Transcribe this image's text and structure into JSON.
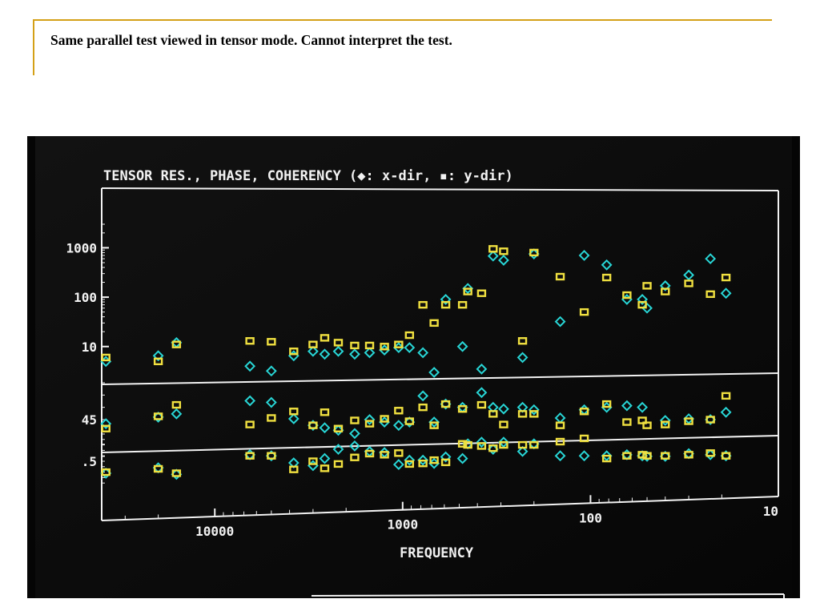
{
  "slide": {
    "caption": "Same parallel test viewed in tensor mode.  Cannot interpret the test."
  },
  "colors": {
    "x_dir": "#28d6d6",
    "y_dir": "#f0e040",
    "frame": "#f2f2f2",
    "background": "#0b0b0b",
    "caption_rule": "#d4a017"
  },
  "chart_data": {
    "type": "scatter",
    "title": "TENSOR RES., PHASE, COHERENCY (◆: x-dir, ▪: y-dir)",
    "xlabel": "FREQUENCY",
    "x_scale": "log",
    "x_reversed": true,
    "x_range": [
      40000,
      10
    ],
    "x_tick_labels": [
      {
        "value": 10000,
        "label": "10000"
      },
      {
        "value": 1000,
        "label": "1000"
      },
      {
        "value": 100,
        "label": "100"
      },
      {
        "value": 10,
        "label": "10"
      }
    ],
    "panels": [
      {
        "name": "resistivity",
        "scale": "log",
        "range": [
          3,
          3000
        ],
        "tick_labels": [
          {
            "value": 1000,
            "label": "1000"
          },
          {
            "value": 100,
            "label": "100"
          },
          {
            "value": 10,
            "label": "10"
          }
        ],
        "series": [
          {
            "marker": "diamond",
            "points": [
              [
                38000,
                5
              ],
              [
                20000,
                6.5
              ],
              [
                16000,
                12
              ],
              [
                6500,
                4
              ],
              [
                5000,
                3.2
              ],
              [
                3800,
                6.5
              ],
              [
                3000,
                8
              ],
              [
                2600,
                7
              ],
              [
                2200,
                8
              ],
              [
                1800,
                7
              ],
              [
                1500,
                7.5
              ],
              [
                1250,
                8.5
              ],
              [
                1050,
                9.5
              ],
              [
                920,
                9.5
              ],
              [
                780,
                7.5
              ],
              [
                680,
                3
              ],
              [
                590,
                90
              ],
              [
                480,
                10
              ],
              [
                450,
                150
              ],
              [
                380,
                3.5
              ],
              [
                330,
                680
              ],
              [
                290,
                560
              ],
              [
                230,
                6
              ],
              [
                200,
                750
              ],
              [
                145,
                32
              ],
              [
                108,
                700
              ],
              [
                82,
                450
              ],
              [
                64,
                90
              ],
              [
                53,
                90
              ],
              [
                50,
                60
              ],
              [
                40,
                170
              ],
              [
                30,
                280
              ],
              [
                23,
                600
              ],
              [
                19,
                120
              ]
            ]
          },
          {
            "marker": "square",
            "points": [
              [
                38000,
                6
              ],
              [
                20000,
                5
              ],
              [
                16000,
                11
              ],
              [
                6500,
                13
              ],
              [
                5000,
                12.5
              ],
              [
                3800,
                8
              ],
              [
                3000,
                11
              ],
              [
                2600,
                15
              ],
              [
                2200,
                12
              ],
              [
                1800,
                10.5
              ],
              [
                1500,
                10.5
              ],
              [
                1250,
                10
              ],
              [
                1050,
                11
              ],
              [
                920,
                17
              ],
              [
                780,
                70
              ],
              [
                680,
                30
              ],
              [
                590,
                70
              ],
              [
                480,
                70
              ],
              [
                450,
                130
              ],
              [
                380,
                120
              ],
              [
                330,
                950
              ],
              [
                290,
                850
              ],
              [
                230,
                13
              ],
              [
                200,
                800
              ],
              [
                145,
                260
              ],
              [
                108,
                50
              ],
              [
                82,
                250
              ],
              [
                64,
                110
              ],
              [
                53,
                70
              ],
              [
                50,
                170
              ],
              [
                40,
                130
              ],
              [
                30,
                190
              ],
              [
                23,
                115
              ],
              [
                19,
                250
              ]
            ]
          }
        ]
      },
      {
        "name": "phase",
        "tick_labels": [
          {
            "value": 45,
            "label": "45"
          }
        ],
        "series": [
          {
            "marker": "diamond",
            "points": [
              [
                38000,
                40
              ],
              [
                20000,
                48
              ],
              [
                16000,
                52
              ],
              [
                6500,
                68
              ],
              [
                5000,
                66
              ],
              [
                3800,
                46
              ],
              [
                3000,
                38
              ],
              [
                2600,
                35
              ],
              [
                2200,
                32
              ],
              [
                1800,
                28
              ],
              [
                1500,
                45
              ],
              [
                1250,
                42
              ],
              [
                1050,
                38
              ],
              [
                920,
                42
              ],
              [
                780,
                74
              ],
              [
                680,
                42
              ],
              [
                590,
                64
              ],
              [
                480,
                60
              ],
              [
                380,
                78
              ],
              [
                330,
                60
              ],
              [
                290,
                58
              ],
              [
                230,
                60
              ],
              [
                200,
                57
              ],
              [
                145,
                47
              ],
              [
                108,
                57
              ],
              [
                82,
                60
              ],
              [
                64,
                62
              ],
              [
                53,
                60
              ],
              [
                40,
                44
              ],
              [
                30,
                46
              ],
              [
                23,
                45
              ],
              [
                19,
                54
              ]
            ]
          },
          {
            "marker": "square",
            "points": [
              [
                38000,
                34
              ],
              [
                20000,
                49
              ],
              [
                16000,
                63
              ],
              [
                6500,
                39
              ],
              [
                5000,
                47
              ],
              [
                3800,
                55
              ],
              [
                3000,
                38
              ],
              [
                2600,
                54
              ],
              [
                2200,
                34
              ],
              [
                1800,
                44
              ],
              [
                1500,
                40
              ],
              [
                1250,
                46
              ],
              [
                1050,
                56
              ],
              [
                920,
                43
              ],
              [
                780,
                60
              ],
              [
                680,
                38
              ],
              [
                590,
                64
              ],
              [
                480,
                58
              ],
              [
                380,
                63
              ],
              [
                330,
                52
              ],
              [
                290,
                39
              ],
              [
                230,
                52
              ],
              [
                200,
                52
              ],
              [
                145,
                38
              ],
              [
                108,
                55
              ],
              [
                82,
                64
              ],
              [
                64,
                42
              ],
              [
                53,
                44
              ],
              [
                50,
                38
              ],
              [
                40,
                39
              ],
              [
                30,
                43
              ],
              [
                23,
                45
              ],
              [
                19,
                74
              ]
            ]
          }
        ]
      },
      {
        "name": "coherency",
        "tick_labels": [
          {
            "value": 0.5,
            "label": ".5"
          }
        ],
        "series": [
          {
            "marker": "diamond",
            "points": [
              [
                38000,
                0.28
              ],
              [
                20000,
                0.38
              ],
              [
                16000,
                0.26
              ],
              [
                6500,
                0.62
              ],
              [
                5000,
                0.6
              ],
              [
                3800,
                0.47
              ],
              [
                3000,
                0.42
              ],
              [
                2600,
                0.55
              ],
              [
                2200,
                0.72
              ],
              [
                1800,
                0.78
              ],
              [
                1500,
                0.68
              ],
              [
                1250,
                0.66
              ],
              [
                1050,
                0.44
              ],
              [
                920,
                0.52
              ],
              [
                780,
                0.52
              ],
              [
                680,
                0.46
              ],
              [
                590,
                0.58
              ],
              [
                480,
                0.55
              ],
              [
                450,
                0.82
              ],
              [
                380,
                0.85
              ],
              [
                330,
                0.72
              ],
              [
                290,
                0.85
              ],
              [
                230,
                0.68
              ],
              [
                200,
                0.82
              ],
              [
                145,
                0.6
              ],
              [
                108,
                0.6
              ],
              [
                82,
                0.6
              ],
              [
                64,
                0.62
              ],
              [
                53,
                0.6
              ],
              [
                50,
                0.59
              ],
              [
                40,
                0.59
              ],
              [
                30,
                0.64
              ],
              [
                23,
                0.62
              ],
              [
                19,
                0.6
              ]
            ]
          },
          {
            "marker": "square",
            "points": [
              [
                38000,
                0.3
              ],
              [
                20000,
                0.36
              ],
              [
                16000,
                0.28
              ],
              [
                6500,
                0.6
              ],
              [
                5000,
                0.6
              ],
              [
                3800,
                0.35
              ],
              [
                3000,
                0.5
              ],
              [
                2600,
                0.37
              ],
              [
                2200,
                0.45
              ],
              [
                1800,
                0.57
              ],
              [
                1500,
                0.64
              ],
              [
                1250,
                0.62
              ],
              [
                1050,
                0.65
              ],
              [
                920,
                0.45
              ],
              [
                780,
                0.46
              ],
              [
                680,
                0.52
              ],
              [
                590,
                0.48
              ],
              [
                480,
                0.82
              ],
              [
                450,
                0.8
              ],
              [
                380,
                0.78
              ],
              [
                330,
                0.74
              ],
              [
                290,
                0.8
              ],
              [
                230,
                0.8
              ],
              [
                200,
                0.8
              ],
              [
                145,
                0.86
              ],
              [
                108,
                0.92
              ],
              [
                82,
                0.55
              ],
              [
                64,
                0.6
              ],
              [
                53,
                0.62
              ],
              [
                50,
                0.6
              ],
              [
                40,
                0.6
              ],
              [
                30,
                0.62
              ],
              [
                23,
                0.65
              ],
              [
                19,
                0.6
              ]
            ]
          }
        ]
      }
    ]
  }
}
